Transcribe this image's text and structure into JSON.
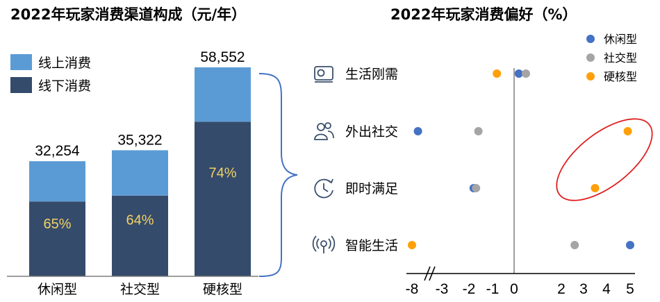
{
  "chart_data": [
    {
      "type": "bar",
      "stacked": true,
      "title": "2022年玩家消费渠道构成（元/年）",
      "categories": [
        "休闲型",
        "社交型",
        "硬核型"
      ],
      "totals": [
        32254,
        35322,
        58552
      ],
      "totals_labels": [
        "32,254",
        "35,322",
        "58,552"
      ],
      "series": [
        {
          "name": "线下消费",
          "share": [
            0.65,
            0.64,
            0.74
          ],
          "color": "#354b6b"
        },
        {
          "name": "线上消费",
          "share": [
            0.35,
            0.36,
            0.26
          ],
          "color": "#5b9bd5"
        }
      ],
      "inner_labels": [
        "65%",
        "64%",
        "74%"
      ],
      "legend": {
        "position": "top-left",
        "items": [
          "线上消费",
          "线下消费"
        ]
      }
    },
    {
      "type": "scatter",
      "title": "2022年玩家消费偏好（%）",
      "categories": [
        "生活刚需",
        "外出社交",
        "即时满足",
        "智能生活"
      ],
      "category_icons": [
        "toilet-paper-icon",
        "people-icon",
        "clock-icon",
        "smart-signal-icon"
      ],
      "x_ticks": [
        -8,
        -3,
        -2,
        -1,
        0,
        2,
        3,
        4,
        5
      ],
      "x_tick_labels": [
        "-8",
        "-3",
        "-2",
        "-1",
        "0",
        "2",
        "3",
        "4",
        "5"
      ],
      "axis_break_between": [
        -8,
        -3
      ],
      "series": [
        {
          "name": "休闲型",
          "color": "#4472c4",
          "values": [
            0.2,
            -7.0,
            -1.8,
            5.0
          ]
        },
        {
          "name": "社交型",
          "color": "#a5a5a5",
          "values": [
            0.5,
            -1.6,
            -1.7,
            2.6
          ]
        },
        {
          "name": "硬核型",
          "color": "#ffa00a",
          "values": [
            -0.8,
            4.9,
            3.5,
            -8.0
          ]
        }
      ],
      "highlight": {
        "category_from": "外出社交",
        "category_to": "即时满足",
        "series": "硬核型",
        "color": "#e02020"
      },
      "legend": {
        "position": "top-right",
        "items": [
          "休闲型",
          "社交型",
          "硬核型"
        ]
      }
    }
  ]
}
